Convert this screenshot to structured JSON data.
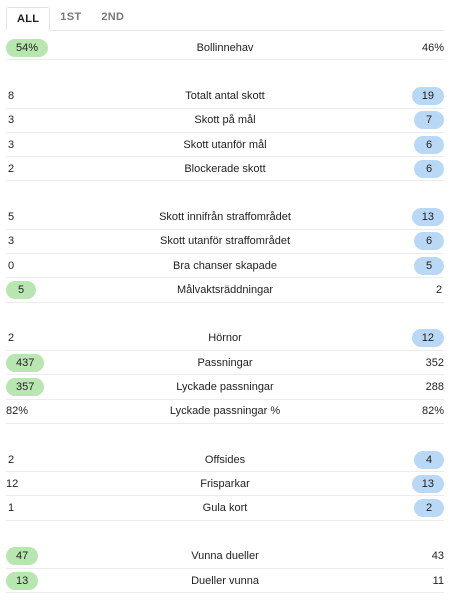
{
  "tabs": [
    {
      "label": "ALL",
      "active": true
    },
    {
      "label": "1ST",
      "active": false
    },
    {
      "label": "2ND",
      "active": false
    }
  ],
  "colors": {
    "home_highlight": "#b8e6b0",
    "away_highlight": "#b8d8f5"
  },
  "stats": [
    {
      "label": "Bollinnehav",
      "home": "54%",
      "away": "46%",
      "leader": "home",
      "group_start": false
    },
    {
      "label": "Totalt antal skott",
      "home": "8",
      "away": "19",
      "leader": "away",
      "group_start": true
    },
    {
      "label": "Skott på mål",
      "home": "3",
      "away": "7",
      "leader": "away",
      "group_start": false
    },
    {
      "label": "Skott utanför mål",
      "home": "3",
      "away": "6",
      "leader": "away",
      "group_start": false
    },
    {
      "label": "Blockerade skott",
      "home": "2",
      "away": "6",
      "leader": "away",
      "group_start": false
    },
    {
      "label": "Skott innifrån straffområdet",
      "home": "5",
      "away": "13",
      "leader": "away",
      "group_start": true
    },
    {
      "label": "Skott utanför straffområdet",
      "home": "3",
      "away": "6",
      "leader": "away",
      "group_start": false
    },
    {
      "label": "Bra chanser skapade",
      "home": "0",
      "away": "5",
      "leader": "away",
      "group_start": false
    },
    {
      "label": "Målvaktsräddningar",
      "home": "5",
      "away": "2",
      "leader": "home",
      "group_start": false
    },
    {
      "label": "Hörnor",
      "home": "2",
      "away": "12",
      "leader": "away",
      "group_start": true
    },
    {
      "label": "Passningar",
      "home": "437",
      "away": "352",
      "leader": "home",
      "group_start": false
    },
    {
      "label": "Lyckade passningar",
      "home": "357",
      "away": "288",
      "leader": "home",
      "group_start": false
    },
    {
      "label": "Lyckade passningar %",
      "home": "82%",
      "away": "82%",
      "leader": "none",
      "group_start": false
    },
    {
      "label": "Offsides",
      "home": "2",
      "away": "4",
      "leader": "away",
      "group_start": true
    },
    {
      "label": "Frisparkar",
      "home": "12",
      "away": "13",
      "leader": "away",
      "group_start": false
    },
    {
      "label": "Gula kort",
      "home": "1",
      "away": "2",
      "leader": "away",
      "group_start": false
    },
    {
      "label": "Vunna dueller",
      "home": "47",
      "away": "43",
      "leader": "home",
      "group_start": true
    },
    {
      "label": "Dueller vunna",
      "home": "13",
      "away": "11",
      "leader": "home",
      "group_start": false
    }
  ]
}
